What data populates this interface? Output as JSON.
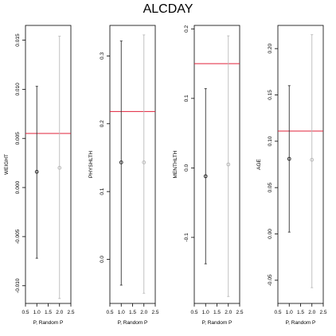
{
  "title": "ALCDAY",
  "colors": {
    "point_dark": "#333333",
    "point_light": "#bbbbbb",
    "refline": "#e0203a",
    "frame": "#000000"
  },
  "chart_data": [
    {
      "type": "scatter",
      "ylabel": "WEIGHT",
      "xlabel": "P, Random P",
      "xlim": [
        0.5,
        2.5
      ],
      "xticks": [
        "0.5",
        "1.0",
        "1.5",
        "2.0",
        "2.5"
      ],
      "ylim": [
        -0.0118,
        0.0165
      ],
      "yticks": [
        "-0.010",
        "-0.005",
        "0.000",
        "0.005",
        "0.010",
        "0.015"
      ],
      "hline": 0.0055,
      "series": [
        {
          "x": 1,
          "y": 0.0016,
          "low": -0.0072,
          "high": 0.0103,
          "color": "#333333"
        },
        {
          "x": 2,
          "y": 0.002,
          "low": -0.0113,
          "high": 0.0154,
          "color": "#bbbbbb"
        }
      ]
    },
    {
      "type": "scatter",
      "ylabel": "PHYSHLTH",
      "xlabel": "P, Random P",
      "xlim": [
        0.5,
        2.5
      ],
      "xticks": [
        "0.5",
        "1.0",
        "1.5",
        "2.0",
        "2.5"
      ],
      "ylim": [
        -0.065,
        0.345
      ],
      "yticks": [
        "0.0",
        "0.1",
        "0.2",
        "0.3"
      ],
      "hline": 0.218,
      "series": [
        {
          "x": 1,
          "y": 0.143,
          "low": -0.038,
          "high": 0.322,
          "color": "#333333"
        },
        {
          "x": 2,
          "y": 0.143,
          "low": -0.05,
          "high": 0.331,
          "color": "#bbbbbb"
        }
      ]
    },
    {
      "type": "scatter",
      "ylabel": "MENTHLTH",
      "xlabel": "P, Random P",
      "xlim": [
        0.5,
        2.5
      ],
      "xticks": [
        "0.5",
        "1.0",
        "1.5",
        "2.0",
        "2.5"
      ],
      "ylim": [
        -0.195,
        0.205
      ],
      "yticks": [
        "-0.1",
        "0.0",
        "0.1",
        "0.2"
      ],
      "hline": 0.15,
      "series": [
        {
          "x": 1,
          "y": -0.012,
          "low": -0.138,
          "high": 0.114,
          "color": "#333333"
        },
        {
          "x": 2,
          "y": 0.005,
          "low": -0.185,
          "high": 0.19,
          "color": "#bbbbbb"
        }
      ]
    },
    {
      "type": "scatter",
      "ylabel": "AGE",
      "xlabel": "P, Random P",
      "xlim": [
        0.5,
        2.5
      ],
      "xticks": [
        "0.5",
        "1.0",
        "1.5",
        "2.0",
        "2.5"
      ],
      "ylim": [
        -0.075,
        0.225
      ],
      "yticks": [
        "-0.05",
        "0.00",
        "0.05",
        "0.10",
        "0.15",
        "0.20"
      ],
      "hline": 0.111,
      "series": [
        {
          "x": 1,
          "y": 0.081,
          "low": 0.002,
          "high": 0.16,
          "color": "#333333"
        },
        {
          "x": 2,
          "y": 0.08,
          "low": -0.058,
          "high": 0.215,
          "color": "#bbbbbb"
        }
      ]
    }
  ]
}
